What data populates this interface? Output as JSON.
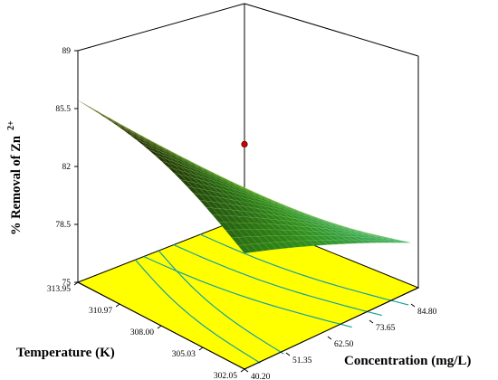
{
  "chart_data": {
    "type": "surface3d",
    "zlabel": "% Removal of Zn",
    "zlabel_superscript": "2+",
    "xlabel": "Temperature (K)",
    "ylabel": "Concentration (mg/L)",
    "z_ticks": [
      "75",
      "78.5",
      "82",
      "85.5",
      "89"
    ],
    "zlim": [
      75,
      89
    ],
    "x_ticks": [
      "313.95",
      "310.97",
      "308.00",
      "305.03",
      "302.05"
    ],
    "x_range": [
      302.05,
      313.95
    ],
    "y_ticks": [
      "40.20",
      "51.35",
      "62.50",
      "73.65",
      "84.80"
    ],
    "y_range": [
      40.2,
      84.8
    ],
    "surface_corners": [
      {
        "temperature": 313.95,
        "concentration": 40.2,
        "removal": 86.0
      },
      {
        "temperature": 302.05,
        "concentration": 40.2,
        "removal": 82.0
      },
      {
        "temperature": 313.95,
        "concentration": 84.8,
        "removal": 76.5
      },
      {
        "temperature": 302.05,
        "concentration": 84.8,
        "removal": 79.5
      }
    ],
    "design_point": {
      "temperature": 308.0,
      "concentration": 62.5,
      "removal": 84.0,
      "color": "#cc0000"
    },
    "contour_floor_color": "#ffff00",
    "contour_line_color": "#1aa0a0",
    "surface_colors": {
      "low": "#40e0d0",
      "mid": "#2f8f1f",
      "high": "#1a1a00"
    },
    "grid": true
  }
}
